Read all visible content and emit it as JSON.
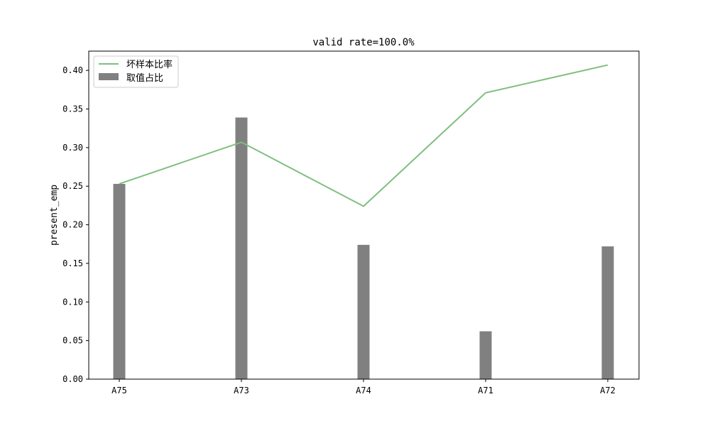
{
  "chart_data": {
    "type": "bar",
    "title": "valid rate=100.0%",
    "xlabel": "",
    "ylabel": "present_emp",
    "categories": [
      "A75",
      "A73",
      "A74",
      "A71",
      "A72"
    ],
    "series": [
      {
        "name": "坏样本比率",
        "kind": "line",
        "color": "#7fbf7f",
        "values": [
          0.253,
          0.307,
          0.224,
          0.371,
          0.407
        ]
      },
      {
        "name": "取值占比",
        "kind": "bar",
        "color": "#808080",
        "values": [
          0.253,
          0.339,
          0.174,
          0.062,
          0.172
        ]
      }
    ],
    "ylim": [
      0,
      0.425
    ],
    "yticks": [
      0.0,
      0.05,
      0.1,
      0.15,
      0.2,
      0.25,
      0.3,
      0.35,
      0.4
    ],
    "ytick_labels": [
      "0.00",
      "0.05",
      "0.10",
      "0.15",
      "0.20",
      "0.25",
      "0.30",
      "0.35",
      "0.40"
    ],
    "grid": false,
    "legend_position": "top-left"
  }
}
